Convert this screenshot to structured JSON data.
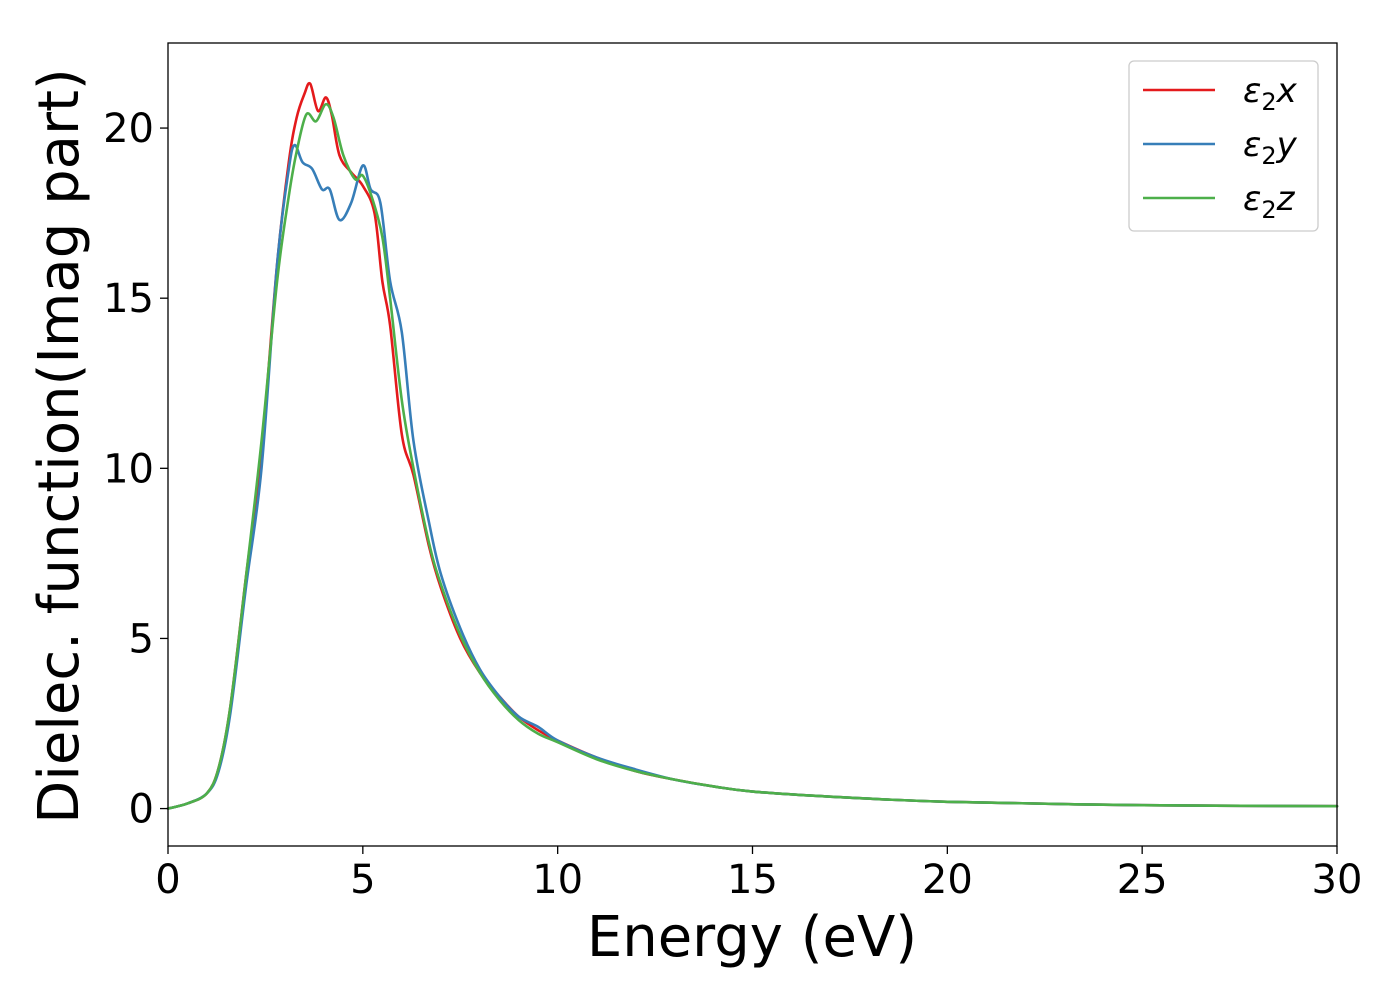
{
  "chart_data": {
    "type": "line",
    "xlabel": "Energy (eV)",
    "ylabel": "Dielec. function(Imag part)",
    "xlim": [
      0,
      30
    ],
    "ylim": [
      -1.1,
      22.5
    ],
    "xticks": [
      0,
      5,
      10,
      15,
      20,
      25,
      30
    ],
    "yticks": [
      0,
      5,
      10,
      15,
      20
    ],
    "grid": false,
    "legend_position": "top-right",
    "series": [
      {
        "name": "ε2x",
        "legend": {
          "base": "ε",
          "sub": "2",
          "axis": "x"
        },
        "color": "#e41a1c",
        "x": [
          0,
          0.5,
          1.0,
          1.3,
          1.6,
          2.0,
          2.4,
          2.8,
          3.1,
          3.3,
          3.5,
          3.65,
          3.85,
          4.05,
          4.2,
          4.4,
          4.7,
          5.0,
          5.3,
          5.5,
          5.7,
          6.0,
          6.3,
          6.7,
          7.0,
          7.5,
          8.0,
          8.5,
          9.0,
          9.5,
          10.0,
          11.0,
          12.0,
          13.0,
          14.0,
          15.0,
          17.0,
          20.0,
          25.0,
          30.0
        ],
        "values": [
          0,
          0.15,
          0.45,
          1.2,
          3.0,
          6.8,
          10.5,
          16.0,
          19.0,
          20.3,
          21.0,
          21.3,
          20.5,
          20.9,
          20.4,
          19.2,
          18.7,
          18.3,
          17.5,
          15.5,
          14.2,
          11.0,
          9.8,
          7.7,
          6.5,
          5.0,
          4.0,
          3.3,
          2.7,
          2.3,
          2.0,
          1.5,
          1.1,
          0.85,
          0.65,
          0.5,
          0.35,
          0.2,
          0.1,
          0.07
        ]
      },
      {
        "name": "ε2y",
        "legend": {
          "base": "ε",
          "sub": "2",
          "axis": "y"
        },
        "color": "#377eb8",
        "x": [
          0,
          0.5,
          1.0,
          1.3,
          1.6,
          2.0,
          2.4,
          2.8,
          3.1,
          3.25,
          3.45,
          3.7,
          3.95,
          4.15,
          4.4,
          4.7,
          5.0,
          5.2,
          5.45,
          5.7,
          6.0,
          6.3,
          6.7,
          7.0,
          7.5,
          8.0,
          8.5,
          9.0,
          9.5,
          10.0,
          11.0,
          12.0,
          13.0,
          14.0,
          15.0,
          17.0,
          20.0,
          25.0,
          30.0
        ],
        "values": [
          0,
          0.15,
          0.45,
          1.1,
          2.8,
          6.5,
          10.0,
          16.0,
          18.8,
          19.5,
          19.0,
          18.8,
          18.2,
          18.2,
          17.3,
          17.8,
          18.9,
          18.2,
          17.8,
          15.5,
          14.0,
          10.8,
          8.4,
          6.9,
          5.3,
          4.1,
          3.3,
          2.7,
          2.4,
          2.0,
          1.5,
          1.15,
          0.85,
          0.65,
          0.5,
          0.35,
          0.2,
          0.1,
          0.07
        ]
      },
      {
        "name": "ε2z",
        "legend": {
          "base": "ε",
          "sub": "2",
          "axis": "z"
        },
        "color": "#4daf4a",
        "x": [
          0,
          0.5,
          1.0,
          1.3,
          1.6,
          2.0,
          2.4,
          2.8,
          3.1,
          3.3,
          3.55,
          3.8,
          4.05,
          4.25,
          4.5,
          4.8,
          5.0,
          5.25,
          5.5,
          5.7,
          6.0,
          6.3,
          6.7,
          7.0,
          7.5,
          8.0,
          8.5,
          9.0,
          9.5,
          10.0,
          11.0,
          12.0,
          13.0,
          14.0,
          15.0,
          17.0,
          20.0,
          25.0,
          30.0
        ],
        "values": [
          0,
          0.15,
          0.45,
          1.2,
          3.0,
          6.8,
          10.8,
          15.5,
          18.0,
          19.3,
          20.4,
          20.2,
          20.7,
          20.3,
          19.2,
          18.5,
          18.6,
          17.9,
          16.8,
          15.0,
          12.0,
          10.0,
          7.8,
          6.6,
          5.1,
          4.0,
          3.2,
          2.6,
          2.2,
          1.95,
          1.45,
          1.1,
          0.85,
          0.65,
          0.5,
          0.35,
          0.2,
          0.1,
          0.07
        ]
      }
    ]
  }
}
